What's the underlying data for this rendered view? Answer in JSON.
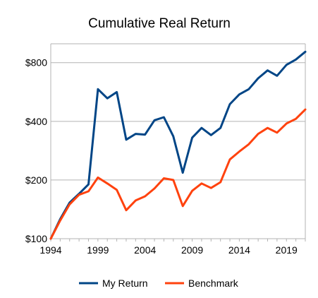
{
  "chart_data": {
    "type": "line",
    "title": "Cumulative Real Return",
    "xlabel": "",
    "ylabel": "",
    "y_scale": "log",
    "ylim": [
      100,
      1000
    ],
    "xlim": [
      1994,
      2021
    ],
    "y_ticks": [
      {
        "value": 100,
        "label": "$100"
      },
      {
        "value": 200,
        "label": "$200"
      },
      {
        "value": 400,
        "label": "$400"
      },
      {
        "value": 800,
        "label": "$800"
      }
    ],
    "x_ticks": [
      {
        "value": 1994,
        "label": "1994"
      },
      {
        "value": 1999,
        "label": "1999"
      },
      {
        "value": 2004,
        "label": "2004"
      },
      {
        "value": 2009,
        "label": "2009"
      },
      {
        "value": 2014,
        "label": "2014"
      },
      {
        "value": 2019,
        "label": "2019"
      }
    ],
    "grid": "horizontal",
    "legend_position": "bottom",
    "x": [
      1994,
      1995,
      1996,
      1997,
      1998,
      1999,
      2000,
      2001,
      2002,
      2003,
      2004,
      2005,
      2006,
      2007,
      2008,
      2009,
      2010,
      2011,
      2012,
      2013,
      2014,
      2015,
      2016,
      2017,
      2018,
      2019,
      2020,
      2021
    ],
    "series": [
      {
        "name": "My Return",
        "color": "#004586",
        "values": [
          100,
          126,
          153,
          170,
          190,
          585,
          525,
          565,
          322,
          345,
          342,
          405,
          420,
          335,
          218,
          330,
          370,
          340,
          370,
          490,
          550,
          585,
          665,
          730,
          685,
          780,
          830,
          910
        ]
      },
      {
        "name": "Benchmark",
        "color": "#ff420e",
        "values": [
          100,
          124,
          150,
          168,
          175,
          206,
          192,
          178,
          140,
          157,
          165,
          181,
          204,
          200,
          147,
          176,
          192,
          182,
          195,
          255,
          280,
          305,
          345,
          370,
          350,
          390,
          412,
          460
        ]
      }
    ]
  }
}
